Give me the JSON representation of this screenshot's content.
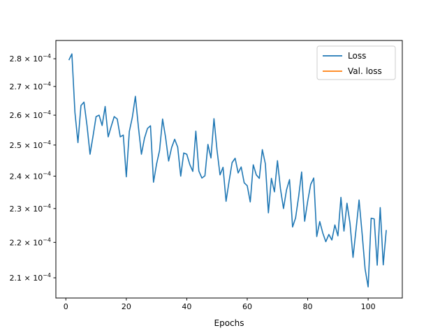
{
  "chart_data": {
    "type": "line",
    "title": "",
    "xlabel": "Epochs",
    "ylabel": "",
    "xlim": [
      -3.3,
      111.3
    ],
    "ylim": [
      0.0002045,
      0.0002868
    ],
    "y_scale": "log",
    "grid": false,
    "legend_position": "top-right",
    "x_ticks": [
      {
        "value": 0,
        "label": "0"
      },
      {
        "value": 20,
        "label": "20"
      },
      {
        "value": 40,
        "label": "40"
      },
      {
        "value": 60,
        "label": "60"
      },
      {
        "value": 80,
        "label": "80"
      },
      {
        "value": 100,
        "label": "100"
      }
    ],
    "y_ticks": [
      {
        "value": 0.00021,
        "mantissa": "2.1",
        "exp": "−4"
      },
      {
        "value": 0.00022,
        "mantissa": "2.2",
        "exp": "−4"
      },
      {
        "value": 0.00023,
        "mantissa": "2.3",
        "exp": "−4"
      },
      {
        "value": 0.00024,
        "mantissa": "2.4",
        "exp": "−4"
      },
      {
        "value": 0.00025,
        "mantissa": "2.5",
        "exp": "−4"
      },
      {
        "value": 0.00026,
        "mantissa": "2.6",
        "exp": "−4"
      },
      {
        "value": 0.00027,
        "mantissa": "2.7",
        "exp": "−4"
      },
      {
        "value": 0.00028,
        "mantissa": "2.8",
        "exp": "−4"
      }
    ],
    "y_tick_base": "× 10",
    "series": [
      {
        "name": "Loss",
        "color": "#1f77b4",
        "x": [
          1,
          2,
          3,
          4,
          5,
          6,
          7,
          8,
          9,
          10,
          11,
          12,
          13,
          14,
          15,
          16,
          17,
          18,
          19,
          20,
          21,
          22,
          23,
          24,
          25,
          26,
          27,
          28,
          29,
          30,
          31,
          32,
          33,
          34,
          35,
          36,
          37,
          38,
          39,
          40,
          41,
          42,
          43,
          44,
          45,
          46,
          47,
          48,
          49,
          50,
          51,
          52,
          53,
          54,
          55,
          56,
          57,
          58,
          59,
          60,
          61,
          62,
          63,
          64,
          65,
          66,
          67,
          68,
          69,
          70,
          71,
          72,
          73,
          74,
          75,
          76,
          77,
          78,
          79,
          80,
          81,
          82,
          83,
          84,
          85,
          86,
          87,
          88,
          89,
          90,
          91,
          92,
          93,
          94,
          95,
          96,
          97,
          98,
          99,
          100,
          101,
          102,
          103,
          104,
          105,
          106
        ],
        "y": [
          0.0002795,
          0.0002818,
          0.000261,
          0.0002508,
          0.0002633,
          0.0002645,
          0.0002565,
          0.000247,
          0.000253,
          0.0002595,
          0.00026,
          0.0002565,
          0.000263,
          0.0002527,
          0.0002562,
          0.0002595,
          0.0002587,
          0.0002527,
          0.0002533,
          0.0002398,
          0.0002545,
          0.0002593,
          0.0002665,
          0.000256,
          0.000247,
          0.0002522,
          0.0002555,
          0.0002564,
          0.0002381,
          0.0002438,
          0.0002482,
          0.0002587,
          0.0002525,
          0.0002448,
          0.0002492,
          0.0002519,
          0.0002493,
          0.00024,
          0.0002474,
          0.000247,
          0.0002437,
          0.0002415,
          0.0002546,
          0.0002416,
          0.0002394,
          0.0002401,
          0.0002502,
          0.0002458,
          0.0002588,
          0.0002484,
          0.0002404,
          0.0002428,
          0.0002322,
          0.0002384,
          0.0002443,
          0.0002457,
          0.000241,
          0.0002429,
          0.0002379,
          0.000237,
          0.000232,
          0.0002436,
          0.0002404,
          0.0002393,
          0.0002485,
          0.0002439,
          0.0002287,
          0.0002393,
          0.0002351,
          0.0002449,
          0.000236,
          0.00023,
          0.0002357,
          0.0002389,
          0.0002245,
          0.0002272,
          0.0002336,
          0.0002413,
          0.0002262,
          0.0002322,
          0.0002374,
          0.0002394,
          0.0002217,
          0.0002261,
          0.0002227,
          0.0002202,
          0.0002223,
          0.0002207,
          0.0002251,
          0.0002219,
          0.0002334,
          0.0002233,
          0.0002316,
          0.0002256,
          0.0002157,
          0.0002238,
          0.0002326,
          0.0002226,
          0.0002124,
          0.0002075,
          0.0002271,
          0.0002269,
          0.0002135,
          0.0002303,
          0.0002136,
          0.0002236
        ]
      },
      {
        "name": "Val. loss",
        "color": "#ff7f0e",
        "x": [],
        "y": []
      }
    ]
  }
}
